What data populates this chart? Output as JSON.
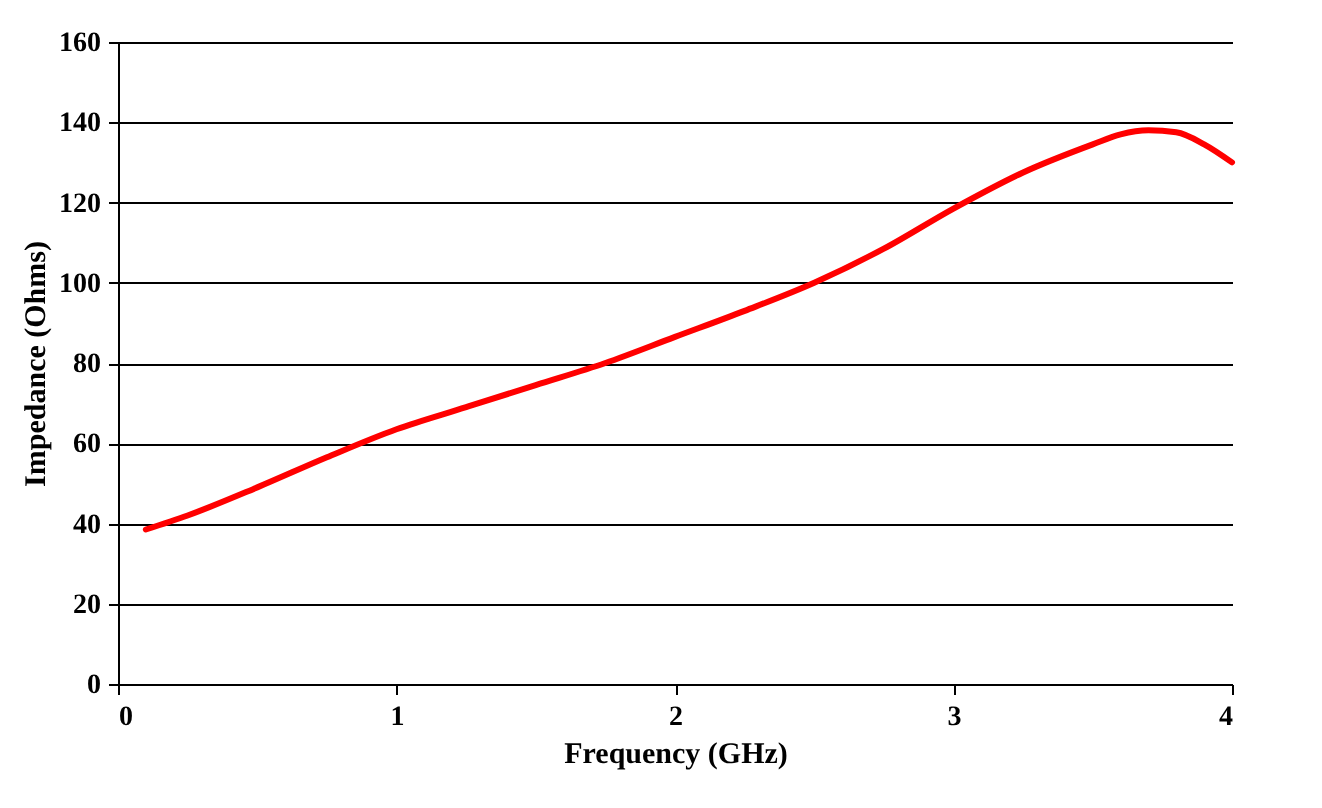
{
  "chart_data": {
    "type": "line",
    "xlabel": "Frequency (GHz)",
    "ylabel": "Impedance (Ohms)",
    "x": [
      0.1,
      0.25,
      0.5,
      0.75,
      1,
      1.25,
      1.5,
      1.75,
      2,
      2.25,
      2.5,
      2.75,
      3,
      3.25,
      3.5,
      3.6,
      3.7,
      3.8,
      3.9,
      4
    ],
    "series": [
      {
        "color": "#ff0000",
        "values": [
          38.5,
          42,
          49,
          56.5,
          63.5,
          69,
          74.5,
          80,
          86.5,
          93,
          100,
          108.5,
          118.5,
          127.5,
          134.5,
          137,
          138,
          137.5,
          134.5,
          130
        ]
      }
    ],
    "xlim": [
      0,
      4
    ],
    "xticks": [
      0,
      1,
      2,
      3,
      4
    ],
    "ylim": [
      0,
      160
    ],
    "yticks": [
      0,
      20,
      40,
      60,
      80,
      100,
      120,
      140,
      160
    ],
    "grid": "y",
    "marker": "none",
    "line_style": "solid"
  }
}
